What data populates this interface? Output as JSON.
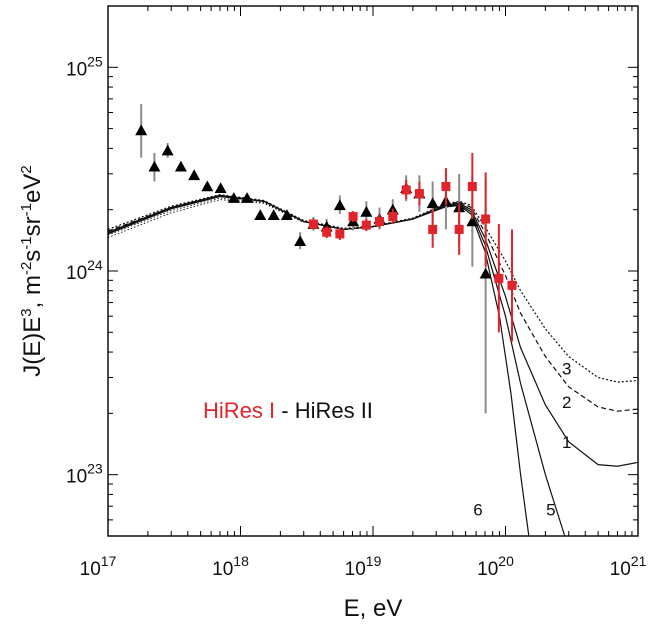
{
  "chart_data": {
    "type": "scatter",
    "xscale": "log",
    "yscale": "log",
    "xlim": [
      1e+17,
      1e+21
    ],
    "ylim": [
      5e+22,
      2e+25
    ],
    "xlabel": "E, eV",
    "ylabel_parts": {
      "j": "J(E)E",
      "j_sup": "3",
      "unit": ", m",
      "unit_sup1": "-2",
      "s": "s",
      "s_sup": "-1",
      "sr": "sr",
      "sr_sup": "-1",
      "ev": "eV",
      "ev_sup": "2"
    },
    "x_ticks": [
      {
        "value": 1e+17,
        "base": "10",
        "exp": "17"
      },
      {
        "value": 1e+18,
        "base": "10",
        "exp": "18"
      },
      {
        "value": 1e+19,
        "base": "10",
        "exp": "19"
      },
      {
        "value": 1e+20,
        "base": "10",
        "exp": "20"
      },
      {
        "value": 1e+21,
        "base": "10",
        "exp": "21"
      }
    ],
    "y_ticks": [
      {
        "value": 1e+23,
        "base": "10",
        "exp": "23"
      },
      {
        "value": 1e+24,
        "base": "10",
        "exp": "24"
      },
      {
        "value": 1e+25,
        "base": "10",
        "exp": "25"
      }
    ],
    "legend": {
      "series_1": "HiRes I",
      "separator": " - ",
      "series_2": "HiRes II",
      "color_1": "#e0242a",
      "color_2": "#111111"
    },
    "marker_colors": {
      "hires1": "#e0242a",
      "hires2": "#000000",
      "hires2_err": "#8c8c8c"
    },
    "series": [
      {
        "key": "hires2",
        "marker": "triangle",
        "points": [
          {
            "x": 1.78e+17,
            "y": 4.9e+24,
            "ylo": 3.6e+24,
            "yhi": 6.6e+24
          },
          {
            "x": 2.24e+17,
            "y": 3.25e+24,
            "ylo": 2.75e+24,
            "yhi": 3.8e+24
          },
          {
            "x": 2.82e+17,
            "y": 3.9e+24,
            "ylo": 3.6e+24,
            "yhi": 4.25e+24
          },
          {
            "x": 3.55e+17,
            "y": 3.25e+24,
            "ylo": 3.1e+24,
            "yhi": 3.45e+24
          },
          {
            "x": 4.47e+17,
            "y": 2.95e+24,
            "ylo": 2.85e+24,
            "yhi": 3.05e+24
          },
          {
            "x": 5.62e+17,
            "y": 2.6e+24,
            "ylo": 2.52e+24,
            "yhi": 2.68e+24
          },
          {
            "x": 7.08e+17,
            "y": 2.55e+24,
            "ylo": 2.48e+24,
            "yhi": 2.63e+24
          },
          {
            "x": 8.91e+17,
            "y": 2.28e+24,
            "ylo": 2.22e+24,
            "yhi": 2.34e+24
          },
          {
            "x": 1.12e+18,
            "y": 2.28e+24,
            "ylo": 2.22e+24,
            "yhi": 2.34e+24
          },
          {
            "x": 1.41e+18,
            "y": 1.88e+24,
            "ylo": 1.82e+24,
            "yhi": 1.94e+24
          },
          {
            "x": 1.78e+18,
            "y": 1.88e+24,
            "ylo": 1.82e+24,
            "yhi": 1.95e+24
          },
          {
            "x": 2.24e+18,
            "y": 1.88e+24,
            "ylo": 1.8e+24,
            "yhi": 1.97e+24
          },
          {
            "x": 2.82e+18,
            "y": 1.4e+24,
            "ylo": 1.28e+24,
            "yhi": 1.55e+24
          },
          {
            "x": 3.55e+18,
            "y": 1.7e+24,
            "ylo": 1.58e+24,
            "yhi": 1.84e+24
          },
          {
            "x": 4.47e+18,
            "y": 1.65e+24,
            "ylo": 1.52e+24,
            "yhi": 1.8e+24
          },
          {
            "x": 5.62e+18,
            "y": 2.1e+24,
            "ylo": 1.9e+24,
            "yhi": 2.35e+24
          },
          {
            "x": 7.08e+18,
            "y": 1.75e+24,
            "ylo": 1.58e+24,
            "yhi": 1.95e+24
          },
          {
            "x": 8.91e+18,
            "y": 1.95e+24,
            "ylo": 1.75e+24,
            "yhi": 2.2e+24
          },
          {
            "x": 1.12e+19,
            "y": 1.8e+24,
            "ylo": 1.6e+24,
            "yhi": 2.05e+24
          },
          {
            "x": 1.41e+19,
            "y": 2e+24,
            "ylo": 1.8e+24,
            "yhi": 2.25e+24
          },
          {
            "x": 1.78e+19,
            "y": 2.55e+24,
            "ylo": 2.2e+24,
            "yhi": 2.95e+24
          },
          {
            "x": 2.24e+19,
            "y": 2.4e+24,
            "ylo": 1.95e+24,
            "yhi": 2.95e+24
          },
          {
            "x": 2.82e+19,
            "y": 2.15e+24,
            "ylo": 1.7e+24,
            "yhi": 2.75e+24
          },
          {
            "x": 3.55e+19,
            "y": 2.2e+24,
            "ylo": 1.6e+24,
            "yhi": 3e+24
          },
          {
            "x": 4.47e+19,
            "y": 2.05e+24,
            "ylo": 1.35e+24,
            "yhi": 3e+24
          },
          {
            "x": 5.62e+19,
            "y": 1.75e+24,
            "ylo": 1.05e+24,
            "yhi": 2.9e+24
          },
          {
            "x": 7.08e+19,
            "y": 9.7e+23,
            "ylo": 2e+23,
            "yhi": 2.8e+24
          }
        ]
      },
      {
        "key": "hires1",
        "marker": "square",
        "points": [
          {
            "x": 3.55e+18,
            "y": 1.7e+24,
            "ylo": 1.6e+24,
            "yhi": 1.8e+24
          },
          {
            "x": 4.47e+18,
            "y": 1.55e+24,
            "ylo": 1.45e+24,
            "yhi": 1.66e+24
          },
          {
            "x": 5.62e+18,
            "y": 1.52e+24,
            "ylo": 1.42e+24,
            "yhi": 1.63e+24
          },
          {
            "x": 7.08e+18,
            "y": 1.85e+24,
            "ylo": 1.74e+24,
            "yhi": 1.97e+24
          },
          {
            "x": 8.91e+18,
            "y": 1.68e+24,
            "ylo": 1.57e+24,
            "yhi": 1.8e+24
          },
          {
            "x": 1.12e+19,
            "y": 1.75e+24,
            "ylo": 1.62e+24,
            "yhi": 1.9e+24
          },
          {
            "x": 1.41e+19,
            "y": 1.85e+24,
            "ylo": 1.7e+24,
            "yhi": 2.02e+24
          },
          {
            "x": 1.78e+19,
            "y": 2.5e+24,
            "ylo": 2.25e+24,
            "yhi": 2.8e+24
          },
          {
            "x": 2.24e+19,
            "y": 2.4e+24,
            "ylo": 2.1e+24,
            "yhi": 2.75e+24
          },
          {
            "x": 2.82e+19,
            "y": 1.6e+24,
            "ylo": 1.3e+24,
            "yhi": 2e+24
          },
          {
            "x": 3.55e+19,
            "y": 2.6e+24,
            "ylo": 2.1e+24,
            "yhi": 3.2e+24
          },
          {
            "x": 4.47e+19,
            "y": 1.6e+24,
            "ylo": 1.2e+24,
            "yhi": 2.15e+24
          },
          {
            "x": 5.62e+19,
            "y": 2.6e+24,
            "ylo": 1.8e+24,
            "yhi": 3.8e+24
          },
          {
            "x": 7.08e+19,
            "y": 1.8e+24,
            "ylo": 1.05e+24,
            "yhi": 3.05e+24
          },
          {
            "x": 8.91e+19,
            "y": 9.2e+23,
            "ylo": 5e+23,
            "yhi": 1.7e+24
          },
          {
            "x": 1.12e+20,
            "y": 8.5e+23,
            "ylo": 4.5e+23,
            "yhi": 1.6e+24
          }
        ]
      }
    ],
    "curves": [
      {
        "label": "1",
        "dash": "",
        "points": [
          [
            1e+17,
            1.55e+24
          ],
          [
            3e+17,
            2.05e+24
          ],
          [
            7e+17,
            2.35e+24
          ],
          [
            1.5e+18,
            2.2e+24
          ],
          [
            3e+18,
            1.75e+24
          ],
          [
            6e+18,
            1.6e+24
          ],
          [
            1e+19,
            1.65e+24
          ],
          [
            2e+19,
            1.8e+24
          ],
          [
            3.5e+19,
            2.1e+24
          ],
          [
            4.5e+19,
            2.15e+24
          ],
          [
            5.5e+19,
            2e+24
          ],
          [
            7e+19,
            1.45e+24
          ],
          [
            1e+20,
            7.5e+23
          ],
          [
            1.3e+20,
            4.2e+23
          ],
          [
            2e+20,
            2.2e+23
          ],
          [
            3e+20,
            1.45e+23
          ],
          [
            5e+20,
            1.12e+23
          ],
          [
            7e+20,
            1.1e+23
          ],
          [
            1e+21,
            1.15e+23
          ]
        ]
      },
      {
        "label": "2",
        "dash": "5,3",
        "points": [
          [
            1e+17,
            1.57e+24
          ],
          [
            3e+17,
            2.05e+24
          ],
          [
            7e+17,
            2.35e+24
          ],
          [
            1.5e+18,
            2.2e+24
          ],
          [
            3e+18,
            1.75e+24
          ],
          [
            6e+18,
            1.6e+24
          ],
          [
            1e+19,
            1.65e+24
          ],
          [
            2e+19,
            1.8e+24
          ],
          [
            3.5e+19,
            2.12e+24
          ],
          [
            4.5e+19,
            2.18e+24
          ],
          [
            5.5e+19,
            2.05e+24
          ],
          [
            7e+19,
            1.55e+24
          ],
          [
            1e+20,
            9.5e+23
          ],
          [
            1.3e+20,
            6.2e+23
          ],
          [
            2e+20,
            3.8e+23
          ],
          [
            3e+20,
            2.7e+23
          ],
          [
            5e+20,
            2.15e+23
          ],
          [
            7e+20,
            2.05e+23
          ],
          [
            1e+21,
            2.1e+23
          ]
        ]
      },
      {
        "label": "3",
        "dash": "2,2",
        "points": [
          [
            1e+17,
            1.6e+24
          ],
          [
            3e+17,
            2.08e+24
          ],
          [
            7e+17,
            2.37e+24
          ],
          [
            1.5e+18,
            2.22e+24
          ],
          [
            3e+18,
            1.77e+24
          ],
          [
            6e+18,
            1.62e+24
          ],
          [
            1e+19,
            1.66e+24
          ],
          [
            2e+19,
            1.82e+24
          ],
          [
            3.5e+19,
            2.13e+24
          ],
          [
            4.5e+19,
            2.2e+24
          ],
          [
            5.5e+19,
            2.1e+24
          ],
          [
            7e+19,
            1.65e+24
          ],
          [
            1e+20,
            1.12e+24
          ],
          [
            1.3e+20,
            8e+23
          ],
          [
            2e+20,
            5.2e+23
          ],
          [
            3e+20,
            3.8e+23
          ],
          [
            5e+20,
            3e+23
          ],
          [
            7e+20,
            2.85e+23
          ],
          [
            1e+21,
            2.9e+23
          ]
        ]
      },
      {
        "label": "5",
        "dash": "",
        "points": [
          [
            1e+17,
            1.53e+24
          ],
          [
            3e+17,
            2.03e+24
          ],
          [
            7e+17,
            2.33e+24
          ],
          [
            1.5e+18,
            2.2e+24
          ],
          [
            3e+18,
            1.75e+24
          ],
          [
            6e+18,
            1.6e+24
          ],
          [
            1e+19,
            1.65e+24
          ],
          [
            2e+19,
            1.8e+24
          ],
          [
            3.5e+19,
            2.08e+24
          ],
          [
            4.5e+19,
            2.12e+24
          ],
          [
            5.5e+19,
            1.95e+24
          ],
          [
            7e+19,
            1.35e+24
          ],
          [
            1e+20,
            6e+23
          ],
          [
            1.3e+20,
            2.8e+23
          ],
          [
            2e+20,
            1e+23
          ],
          [
            2.8e+20,
            5e+22
          ]
        ]
      },
      {
        "label": "6",
        "dash": "",
        "points": [
          [
            1e+17,
            1.52e+24
          ],
          [
            3e+17,
            2.02e+24
          ],
          [
            7e+17,
            2.32e+24
          ],
          [
            1.5e+18,
            2.2e+24
          ],
          [
            3e+18,
            1.75e+24
          ],
          [
            6e+18,
            1.6e+24
          ],
          [
            1e+19,
            1.65e+24
          ],
          [
            2e+19,
            1.8e+24
          ],
          [
            3.5e+19,
            2.06e+24
          ],
          [
            4.5e+19,
            2.1e+24
          ],
          [
            5.5e+19,
            1.9e+24
          ],
          [
            7e+19,
            1.25e+24
          ],
          [
            9e+19,
            6e+23
          ],
          [
            1.1e+20,
            2.5e+23
          ],
          [
            1.3e+20,
            1e+23
          ],
          [
            1.5e+20,
            5e+22
          ]
        ]
      },
      {
        "label": "",
        "dash": "1.5,2",
        "points": [
          [
            1e+17,
            1.5e+24
          ],
          [
            3e+17,
            1.98e+24
          ],
          [
            7e+17,
            2.28e+24
          ],
          [
            1.5e+18,
            2.17e+24
          ],
          [
            3e+18,
            1.74e+24
          ]
        ]
      },
      {
        "label": "",
        "dash": "1.5,2",
        "points": [
          [
            1e+17,
            1.46e+24
          ],
          [
            3e+17,
            1.93e+24
          ],
          [
            7e+17,
            2.24e+24
          ],
          [
            1.5e+18,
            2.15e+24
          ],
          [
            3e+18,
            1.73e+24
          ]
        ]
      }
    ],
    "curve_labels": [
      {
        "text": "1",
        "x": 2.9e+20,
        "y": 1.35e+23
      },
      {
        "text": "2",
        "x": 2.9e+20,
        "y": 2.12e+23
      },
      {
        "text": "3",
        "x": 2.9e+20,
        "y": 3.1e+23
      },
      {
        "text": "5",
        "x": 2.2e+20,
        "y": 6.3e+22
      },
      {
        "text": "6",
        "x": 6.2e+19,
        "y": 6.3e+22
      }
    ]
  }
}
